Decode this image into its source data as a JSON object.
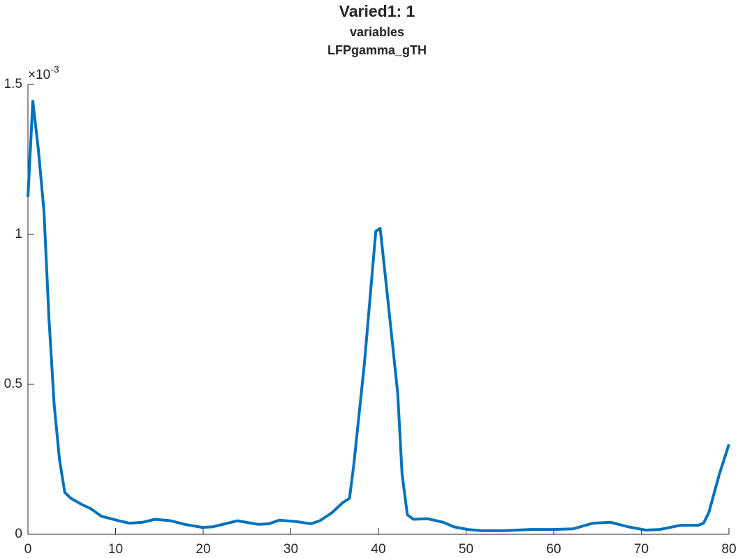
{
  "chart_data": {
    "type": "line",
    "title": "Varied1: 1",
    "subtitle": "variables",
    "subtitle2": "LFPgamma_gTH",
    "y_multiplier": {
      "base": "×10",
      "exponent": "-3"
    },
    "x": [
      0,
      0.56,
      1.2,
      1.83,
      2.4,
      3.0,
      3.6,
      4.2,
      4.9,
      5.5,
      6.1,
      7.2,
      8.4,
      10.4,
      11.6,
      13.1,
      14.5,
      16.3,
      17.9,
      19.9,
      21.1,
      23.9,
      26.3,
      27.5,
      28.7,
      30.7,
      32.3,
      33.3,
      34.7,
      35.9,
      36.7,
      37.2,
      38.4,
      39.7,
      40.2,
      40.9,
      42.2,
      42.7,
      43.3,
      44.0,
      45.6,
      47.4,
      48.6,
      50.2,
      51.8,
      54.2,
      57.4,
      59.8,
      62.2,
      64.5,
      66.5,
      68.5,
      70.5,
      72.1,
      74.5,
      76.5,
      77.1,
      77.7,
      78.9,
      80
    ],
    "series": [
      {
        "color": "#0072bd",
        "values": [
          1.125,
          1.444,
          1.28,
          1.077,
          0.72,
          0.43,
          0.25,
          0.14,
          0.12,
          0.11,
          0.1,
          0.085,
          0.06,
          0.045,
          0.037,
          0.04,
          0.05,
          0.045,
          0.033,
          0.023,
          0.025,
          0.045,
          0.033,
          0.035,
          0.047,
          0.042,
          0.035,
          0.045,
          0.072,
          0.105,
          0.12,
          0.235,
          0.57,
          1.01,
          1.02,
          0.83,
          0.47,
          0.2,
          0.065,
          0.05,
          0.052,
          0.04,
          0.025,
          0.016,
          0.012,
          0.012,
          0.016,
          0.016,
          0.018,
          0.037,
          0.04,
          0.025,
          0.014,
          0.016,
          0.03,
          0.03,
          0.037,
          0.072,
          0.2,
          0.3
        ]
      }
    ],
    "xlim": [
      0,
      80
    ],
    "xticks": [
      0,
      10,
      20,
      30,
      40,
      50,
      60,
      70,
      80
    ],
    "ylim": [
      0,
      1.5
    ],
    "yticks": [
      0,
      0.5,
      1,
      1.5
    ]
  }
}
